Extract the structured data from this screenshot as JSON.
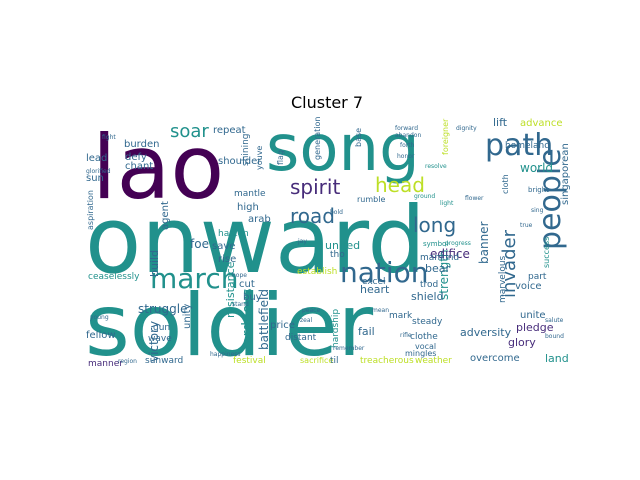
{
  "chart_data": {
    "type": "wordcloud",
    "title": "Cluster 7",
    "words": [
      {
        "text": "onward",
        "color": "#21918c"
      },
      {
        "text": "soldier",
        "color": "#21918c"
      },
      {
        "text": "song",
        "color": "#21918c"
      },
      {
        "text": "lao",
        "color": "#440154"
      },
      {
        "text": "march",
        "color": "#21918c"
      },
      {
        "text": "nation",
        "color": "#31688e"
      },
      {
        "text": "path",
        "color": "#31688e"
      },
      {
        "text": "people",
        "color": "#31688e"
      },
      {
        "text": "spirit",
        "color": "#472c7a"
      },
      {
        "text": "road",
        "color": "#31688e"
      },
      {
        "text": "head",
        "color": "#bddf26"
      },
      {
        "text": "long",
        "color": "#31688e"
      },
      {
        "text": "invader",
        "color": "#31688e"
      },
      {
        "text": "soar",
        "color": "#21918c"
      },
      {
        "text": "struggle",
        "color": "#31688e"
      },
      {
        "text": "victory",
        "color": "#31688e"
      },
      {
        "text": "resistance",
        "color": "#21918c"
      },
      {
        "text": "arduous",
        "color": "#21918c"
      },
      {
        "text": "battlefield",
        "color": "#31688e"
      },
      {
        "text": "strength",
        "color": "#21918c"
      },
      {
        "text": "singaporean",
        "color": "#31688e"
      },
      {
        "text": "advance",
        "color": "#bddf26"
      },
      {
        "text": "lift",
        "color": "#31688e"
      },
      {
        "text": "world",
        "color": "#21918c"
      },
      {
        "text": "edifice",
        "color": "#472c7a"
      },
      {
        "text": "banner",
        "color": "#31688e"
      },
      {
        "text": "bear",
        "color": "#31688e"
      },
      {
        "text": "heart",
        "color": "#31688e"
      },
      {
        "text": "shield",
        "color": "#31688e"
      },
      {
        "text": "adversity",
        "color": "#31688e"
      },
      {
        "text": "pledge",
        "color": "#472c7a"
      },
      {
        "text": "glory",
        "color": "#472c7a"
      },
      {
        "text": "land",
        "color": "#21918c"
      },
      {
        "text": "overcome",
        "color": "#31688e"
      },
      {
        "text": "unite",
        "color": "#31688e"
      },
      {
        "text": "voice",
        "color": "#31688e"
      },
      {
        "text": "fail",
        "color": "#31688e"
      },
      {
        "text": "price",
        "color": "#31688e"
      },
      {
        "text": "foe",
        "color": "#31688e"
      },
      {
        "text": "save",
        "color": "#31688e"
      },
      {
        "text": "rise",
        "color": "#31688e"
      },
      {
        "text": "united",
        "color": "#21918c"
      },
      {
        "text": "build",
        "color": "#31688e"
      },
      {
        "text": "unity",
        "color": "#31688e"
      },
      {
        "text": "agent",
        "color": "#31688e"
      },
      {
        "text": "burden",
        "color": "#31688e"
      },
      {
        "text": "chant",
        "color": "#31688e"
      },
      {
        "text": "defy",
        "color": "#31688e"
      },
      {
        "text": "lead",
        "color": "#31688e"
      },
      {
        "text": "sun",
        "color": "#31688e"
      },
      {
        "text": "repeat",
        "color": "#31688e"
      },
      {
        "text": "shoulder",
        "color": "#31688e"
      },
      {
        "text": "high",
        "color": "#31688e"
      },
      {
        "text": "arab",
        "color": "#31688e"
      },
      {
        "text": "cut",
        "color": "#31688e"
      },
      {
        "text": "buy",
        "color": "#31688e"
      },
      {
        "text": "fellow",
        "color": "#31688e"
      },
      {
        "text": "hasten",
        "color": "#21918c"
      },
      {
        "text": "tho",
        "color": "#31688e"
      },
      {
        "text": "excel",
        "color": "#31688e"
      },
      {
        "text": "mankind",
        "color": "#31688e"
      },
      {
        "text": "trod",
        "color": "#31688e"
      },
      {
        "text": "part",
        "color": "#31688e"
      },
      {
        "text": "success",
        "color": "#21918c"
      },
      {
        "text": "marvelous",
        "color": "#31688e"
      },
      {
        "text": "steady",
        "color": "#31688e"
      },
      {
        "text": "homeland",
        "color": "#31688e"
      },
      {
        "text": "mark",
        "color": "#31688e"
      },
      {
        "text": "gun",
        "color": "#31688e"
      },
      {
        "text": "wave",
        "color": "#31688e"
      },
      {
        "text": "ceaselessly",
        "color": "#21918c"
      },
      {
        "text": "aspiration",
        "color": "#31688e"
      },
      {
        "text": "festival",
        "color": "#bddf26"
      },
      {
        "text": "sacrifice",
        "color": "#bddf26"
      },
      {
        "text": "sunward",
        "color": "#31688e"
      },
      {
        "text": "manner",
        "color": "#472c7a"
      },
      {
        "text": "distant",
        "color": "#31688e"
      },
      {
        "text": "clothe",
        "color": "#31688e"
      },
      {
        "text": "hardship",
        "color": "#21918c"
      },
      {
        "text": "treacherous",
        "color": "#bddf26"
      },
      {
        "text": "weather",
        "color": "#bddf26"
      },
      {
        "text": "til",
        "color": "#31688e"
      },
      {
        "text": "establish",
        "color": "#bddf26"
      },
      {
        "text": "generation",
        "color": "#31688e"
      },
      {
        "text": "mantle",
        "color": "#31688e"
      },
      {
        "text": "shining",
        "color": "#31688e"
      },
      {
        "text": "youve",
        "color": "#31688e"
      },
      {
        "text": "flag",
        "color": "#31688e"
      },
      {
        "text": "cloth",
        "color": "#31688e"
      },
      {
        "text": "rumble",
        "color": "#31688e"
      },
      {
        "text": "mingles",
        "color": "#31688e"
      },
      {
        "text": "vocal",
        "color": "#31688e"
      },
      {
        "text": "forward",
        "color": "#31688e"
      },
      {
        "text": "base",
        "color": "#31688e"
      },
      {
        "text": "bright",
        "color": "#31688e"
      },
      {
        "text": "foreigner",
        "color": "#bddf26"
      },
      {
        "text": "progress",
        "color": "#21918c"
      },
      {
        "text": "symbol",
        "color": "#21918c"
      },
      {
        "text": "resolve",
        "color": "#21918c"
      },
      {
        "text": "ground",
        "color": "#21918c"
      },
      {
        "text": "light",
        "color": "#21918c"
      },
      {
        "text": "glorified",
        "color": "#31688e"
      },
      {
        "text": "dignity",
        "color": "#31688e"
      },
      {
        "text": "fight",
        "color": "#31688e"
      },
      {
        "text": "forth",
        "color": "#31688e"
      },
      {
        "text": "remember",
        "color": "#31688e"
      },
      {
        "text": "happiness",
        "color": "#31688e"
      },
      {
        "text": "region",
        "color": "#31688e"
      },
      {
        "text": "hope",
        "color": "#31688e"
      },
      {
        "text": "stand",
        "color": "#31688e"
      },
      {
        "text": "peace",
        "color": "#31688e"
      },
      {
        "text": "zeal",
        "color": "#31688e"
      },
      {
        "text": "jay",
        "color": "#31688e"
      },
      {
        "text": "abandon",
        "color": "#31688e"
      },
      {
        "text": "honor",
        "color": "#31688e"
      },
      {
        "text": "rifle",
        "color": "#31688e"
      },
      {
        "text": "mean",
        "color": "#31688e"
      },
      {
        "text": "bold",
        "color": "#31688e"
      },
      {
        "text": "flower",
        "color": "#31688e"
      },
      {
        "text": "salute",
        "color": "#31688e"
      },
      {
        "text": "sing",
        "color": "#31688e"
      },
      {
        "text": "true",
        "color": "#31688e"
      },
      {
        "text": "bound",
        "color": "#31688e"
      },
      {
        "text": "young",
        "color": "#31688e"
      }
    ]
  }
}
